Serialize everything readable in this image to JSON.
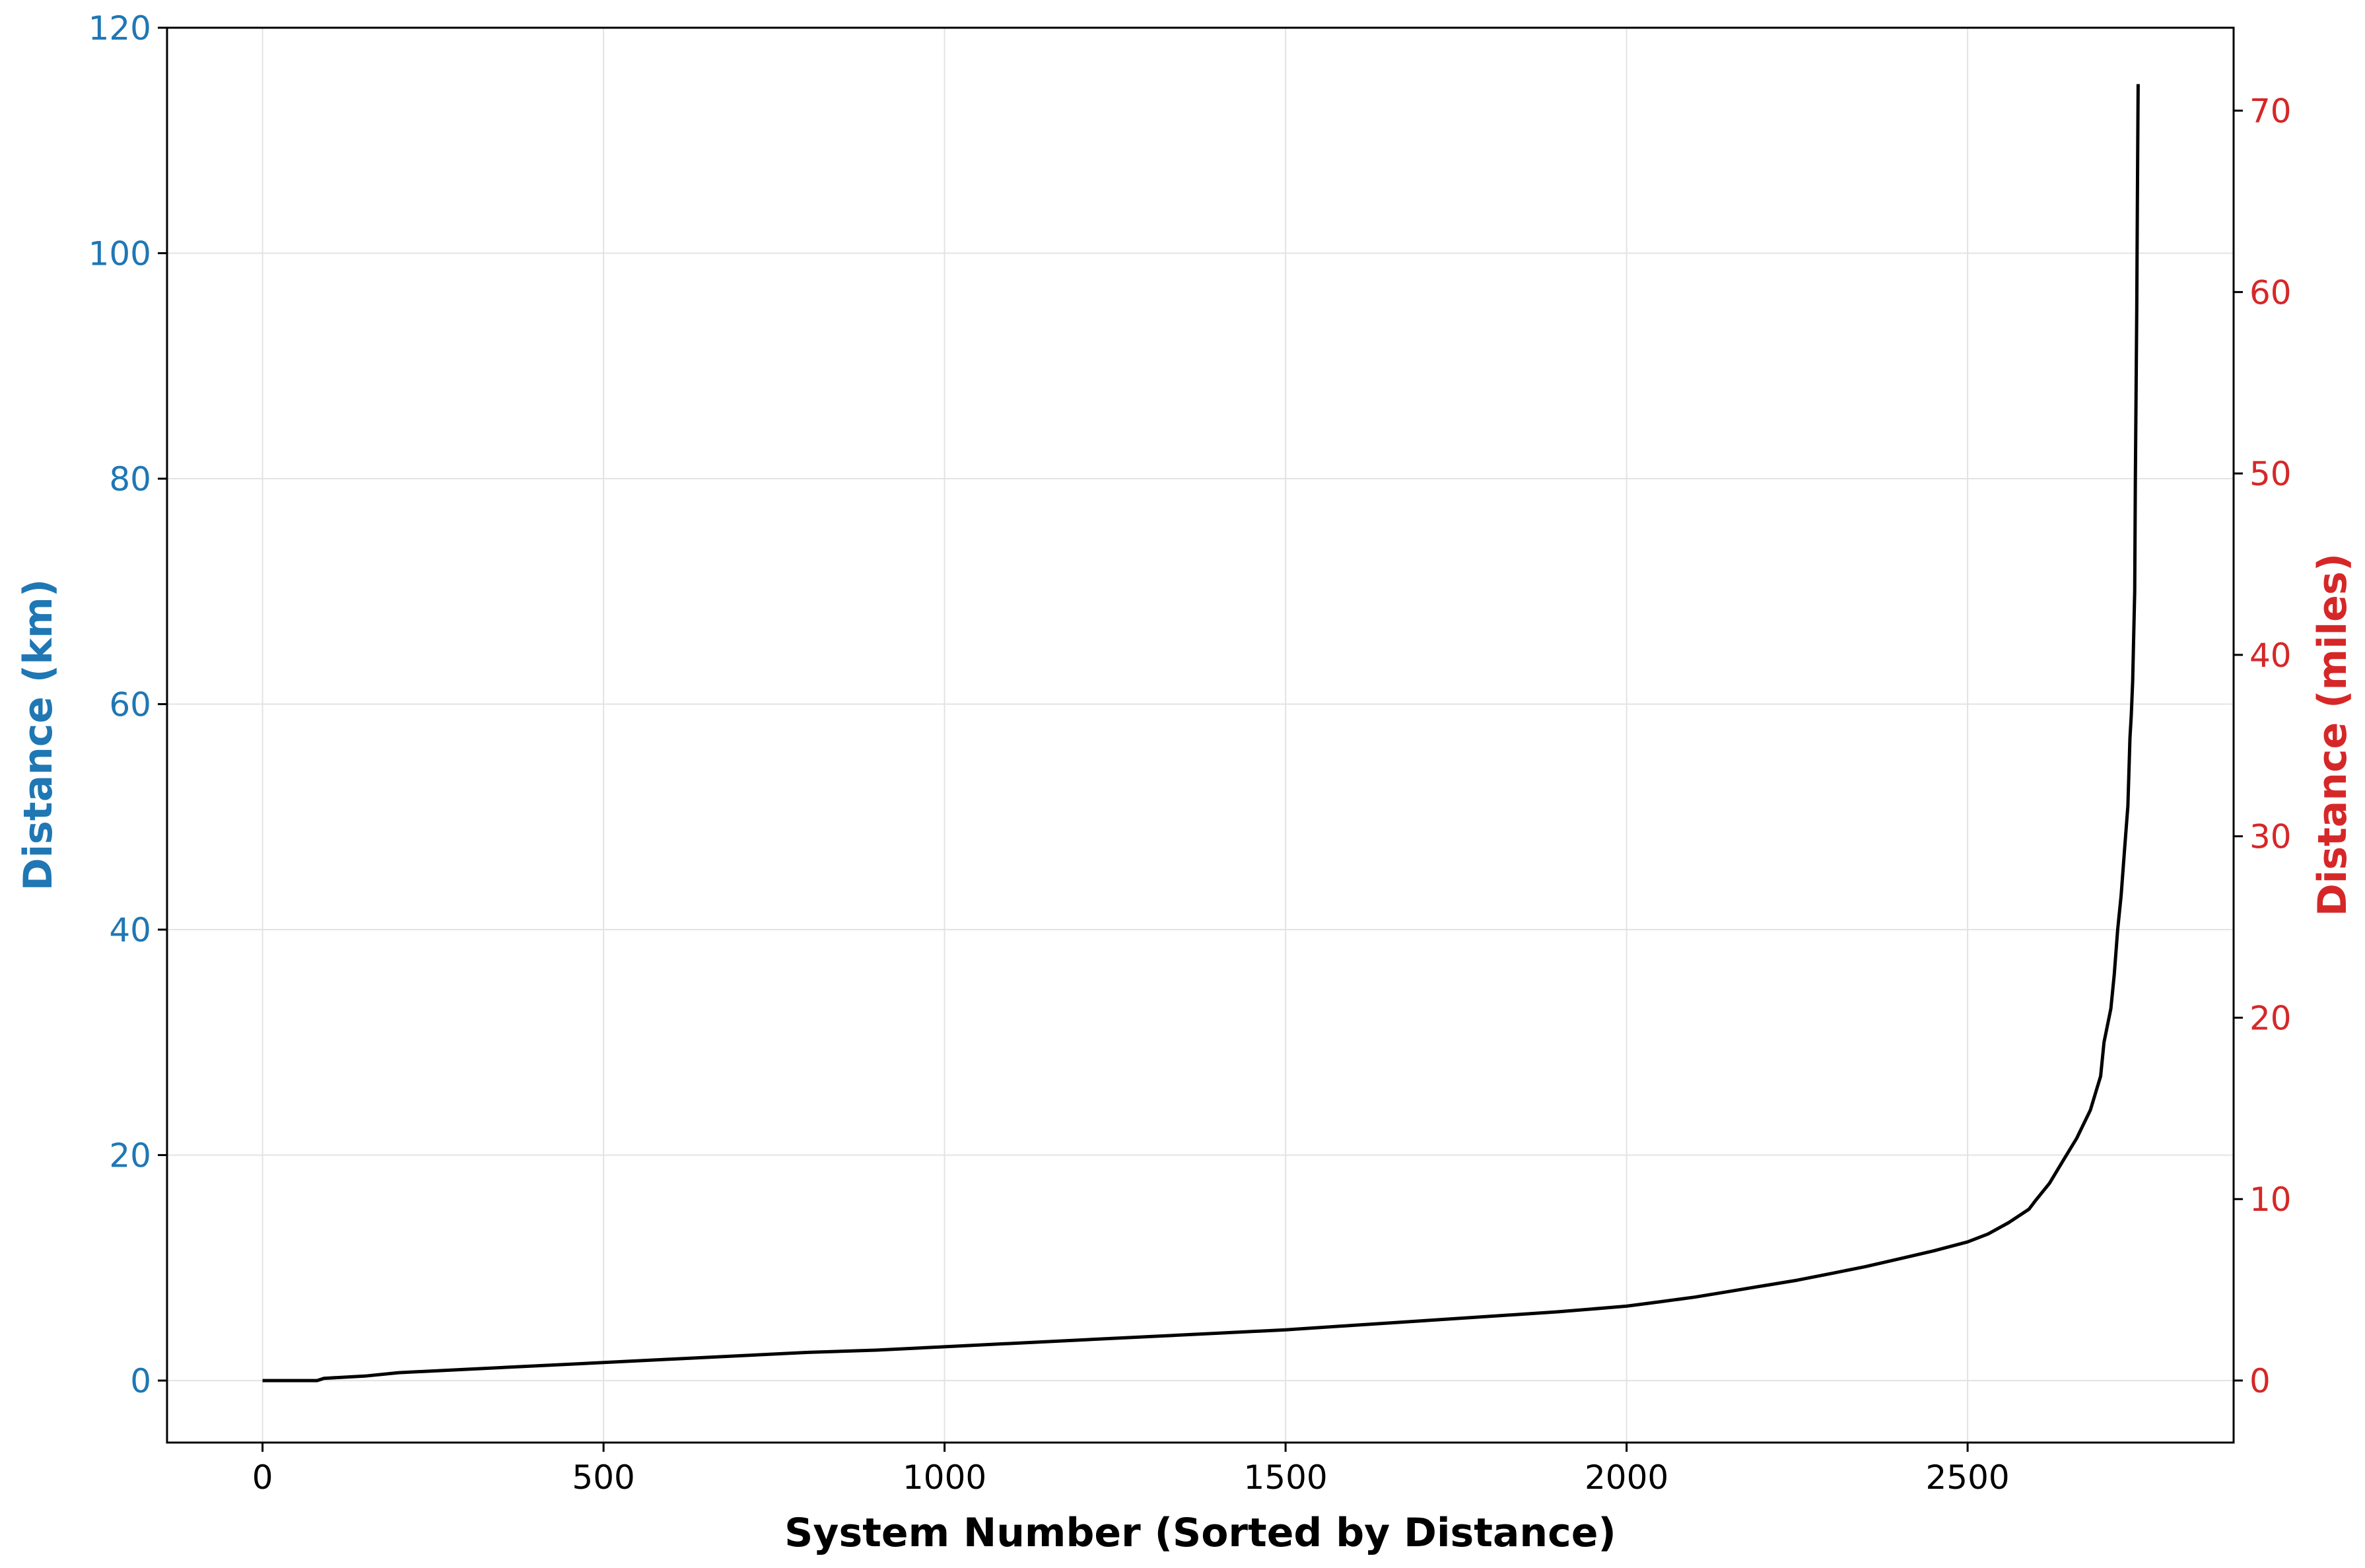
{
  "chart_data": {
    "type": "line",
    "title": "",
    "xlabel": "System Number (Sorted by Distance)",
    "ylabel_left": "Distance (km)",
    "ylabel_right": "Distance (miles)",
    "xlim": [
      -140,
      2890
    ],
    "ylim_left": [
      -5.5,
      120
    ],
    "ylim_right": [
      -3.42,
      74.57
    ],
    "x_ticks": [
      {
        "value": 0,
        "label": "0"
      },
      {
        "value": 500,
        "label": "500"
      },
      {
        "value": 1000,
        "label": "1000"
      },
      {
        "value": 1500,
        "label": "1500"
      },
      {
        "value": 2000,
        "label": "2000"
      },
      {
        "value": 2500,
        "label": "2500"
      }
    ],
    "y_ticks_left": [
      {
        "value": 0,
        "label": "0"
      },
      {
        "value": 20,
        "label": "20"
      },
      {
        "value": 40,
        "label": "40"
      },
      {
        "value": 60,
        "label": "60"
      },
      {
        "value": 80,
        "label": "80"
      },
      {
        "value": 100,
        "label": "100"
      },
      {
        "value": 120,
        "label": "120"
      }
    ],
    "y_ticks_right": [
      {
        "value": 0,
        "label": "0"
      },
      {
        "value": 10,
        "label": "10"
      },
      {
        "value": 20,
        "label": "20"
      },
      {
        "value": 30,
        "label": "30"
      },
      {
        "value": 40,
        "label": "40"
      },
      {
        "value": 50,
        "label": "50"
      },
      {
        "value": 60,
        "label": "60"
      },
      {
        "value": 70,
        "label": "70"
      }
    ],
    "grid": true,
    "colors": {
      "left_axis": "#1f77b4",
      "right_axis": "#d62728",
      "line": "#000000",
      "grid": "#e3e3e3",
      "text": "#000000"
    },
    "series": [
      {
        "name": "Distance (km)",
        "x": [
          0,
          80,
          90,
          150,
          200,
          300,
          400,
          500,
          600,
          700,
          800,
          900,
          1000,
          1100,
          1200,
          1300,
          1400,
          1500,
          1600,
          1700,
          1800,
          1900,
          2000,
          2050,
          2100,
          2150,
          2200,
          2250,
          2300,
          2350,
          2400,
          2450,
          2500,
          2530,
          2560,
          2590,
          2600,
          2620,
          2640,
          2660,
          2680,
          2690,
          2695,
          2700,
          2710,
          2715,
          2720,
          2725,
          2730,
          2735,
          2738,
          2740,
          2742,
          2745,
          2746,
          2748,
          2749,
          2750
        ],
        "values": [
          0,
          0,
          0.2,
          0.4,
          0.7,
          1.0,
          1.3,
          1.6,
          1.9,
          2.2,
          2.5,
          2.7,
          3.0,
          3.3,
          3.6,
          3.9,
          4.2,
          4.5,
          4.9,
          5.3,
          5.7,
          6.1,
          6.6,
          7.0,
          7.4,
          7.9,
          8.4,
          8.9,
          9.5,
          10.1,
          10.8,
          11.5,
          12.3,
          13.0,
          14.0,
          15.2,
          16.0,
          17.5,
          19.5,
          21.5,
          24.0,
          26.0,
          27.0,
          30.0,
          33.0,
          36.0,
          40.0,
          43.0,
          47.0,
          51.0,
          57.0,
          59.0,
          62.0,
          70.0,
          80.0,
          95.0,
          105.0,
          115.0
        ]
      }
    ]
  }
}
